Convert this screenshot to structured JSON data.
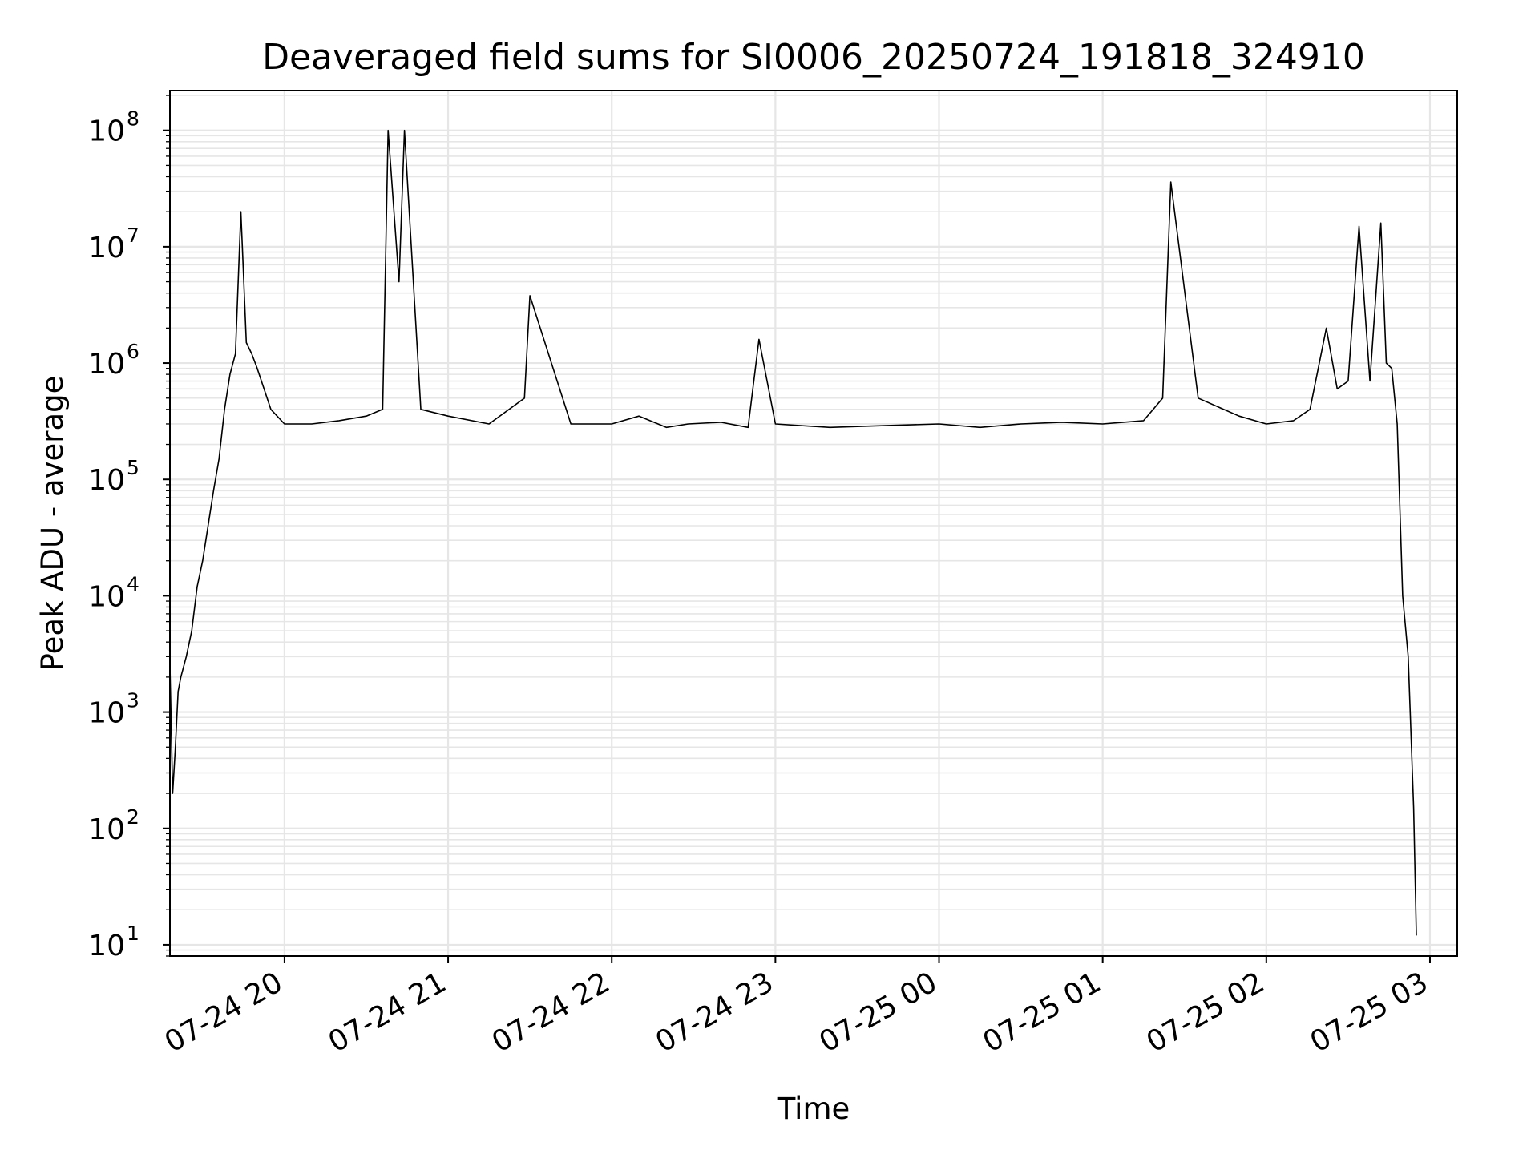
{
  "chart_data": {
    "type": "line",
    "title": "Deaveraged field sums for SI0006_20250724_191818_324910",
    "xlabel": "Time",
    "ylabel": "Peak ADU - average",
    "x_scale": "time",
    "y_scale": "log",
    "xlim": [
      "2025-07-24 19:18",
      "2025-07-25 03:10"
    ],
    "ylim": [
      8,
      220000000
    ],
    "grid": true,
    "grid_minor": true,
    "line_color": "#000000",
    "grid_color": "#e6e6e6",
    "x_ticks": [
      {
        "value": "2025-07-24 20:00",
        "label": "07-24 20"
      },
      {
        "value": "2025-07-24 21:00",
        "label": "07-24 21"
      },
      {
        "value": "2025-07-24 22:00",
        "label": "07-24 22"
      },
      {
        "value": "2025-07-24 23:00",
        "label": "07-24 23"
      },
      {
        "value": "2025-07-25 00:00",
        "label": "07-25 00"
      },
      {
        "value": "2025-07-25 01:00",
        "label": "07-25 01"
      },
      {
        "value": "2025-07-25 02:00",
        "label": "07-25 02"
      },
      {
        "value": "2025-07-25 03:00",
        "label": "07-25 03"
      }
    ],
    "y_ticks": [
      {
        "value": 10,
        "base": "10",
        "exp": "1"
      },
      {
        "value": 100,
        "base": "10",
        "exp": "2"
      },
      {
        "value": 1000,
        "base": "10",
        "exp": "3"
      },
      {
        "value": 10000,
        "base": "10",
        "exp": "4"
      },
      {
        "value": 100000,
        "base": "10",
        "exp": "5"
      },
      {
        "value": 1000000,
        "base": "10",
        "exp": "6"
      },
      {
        "value": 10000000,
        "base": "10",
        "exp": "7"
      },
      {
        "value": 100000000,
        "base": "10",
        "exp": "8"
      }
    ],
    "series": [
      {
        "x": [
          "2025-07-24 19:18",
          "2025-07-24 19:19",
          "2025-07-24 19:20",
          "2025-07-24 19:21",
          "2025-07-24 19:22",
          "2025-07-24 19:24",
          "2025-07-24 19:26",
          "2025-07-24 19:28",
          "2025-07-24 19:30",
          "2025-07-24 19:32",
          "2025-07-24 19:34",
          "2025-07-24 19:36",
          "2025-07-24 19:38",
          "2025-07-24 19:40",
          "2025-07-24 19:42",
          "2025-07-24 19:44",
          "2025-07-24 19:46",
          "2025-07-24 19:48",
          "2025-07-24 19:50",
          "2025-07-24 19:55",
          "2025-07-24 20:00",
          "2025-07-24 20:10",
          "2025-07-24 20:20",
          "2025-07-24 20:30",
          "2025-07-24 20:36",
          "2025-07-24 20:38",
          "2025-07-24 20:42",
          "2025-07-24 20:44",
          "2025-07-24 20:50",
          "2025-07-24 21:00",
          "2025-07-24 21:15",
          "2025-07-24 21:28",
          "2025-07-24 21:30",
          "2025-07-24 21:45",
          "2025-07-24 22:00",
          "2025-07-24 22:10",
          "2025-07-24 22:20",
          "2025-07-24 22:28",
          "2025-07-24 22:40",
          "2025-07-24 22:50",
          "2025-07-24 22:54",
          "2025-07-24 23:00",
          "2025-07-24 23:20",
          "2025-07-24 23:40",
          "2025-07-25 00:00",
          "2025-07-25 00:15",
          "2025-07-25 00:30",
          "2025-07-25 00:45",
          "2025-07-25 01:00",
          "2025-07-25 01:15",
          "2025-07-25 01:22",
          "2025-07-25 01:25",
          "2025-07-25 01:35",
          "2025-07-25 01:50",
          "2025-07-25 02:00",
          "2025-07-25 02:10",
          "2025-07-25 02:16",
          "2025-07-25 02:22",
          "2025-07-25 02:26",
          "2025-07-25 02:30",
          "2025-07-25 02:34",
          "2025-07-25 02:38",
          "2025-07-25 02:42",
          "2025-07-25 02:44",
          "2025-07-25 02:46",
          "2025-07-25 02:48",
          "2025-07-25 02:50",
          "2025-07-25 02:52",
          "2025-07-25 02:54",
          "2025-07-25 02:55"
        ],
        "values": [
          2500,
          200,
          500,
          1500,
          2000,
          3000,
          5000,
          12000,
          20000,
          40000,
          80000,
          150000,
          400000,
          800000,
          1200000,
          20000000,
          1500000,
          1200000,
          900000,
          400000,
          300000,
          300000,
          320000,
          350000,
          400000,
          100000000,
          5000000,
          100000000,
          400000,
          350000,
          300000,
          500000,
          3800000,
          300000,
          300000,
          350000,
          280000,
          300000,
          310000,
          280000,
          1600000,
          300000,
          280000,
          290000,
          300000,
          280000,
          300000,
          310000,
          300000,
          320000,
          500000,
          36000000,
          500000,
          350000,
          300000,
          320000,
          400000,
          2000000,
          600000,
          700000,
          15000000,
          700000,
          16000000,
          1000000,
          900000,
          300000,
          10000,
          3000,
          150,
          12
        ]
      }
    ]
  }
}
